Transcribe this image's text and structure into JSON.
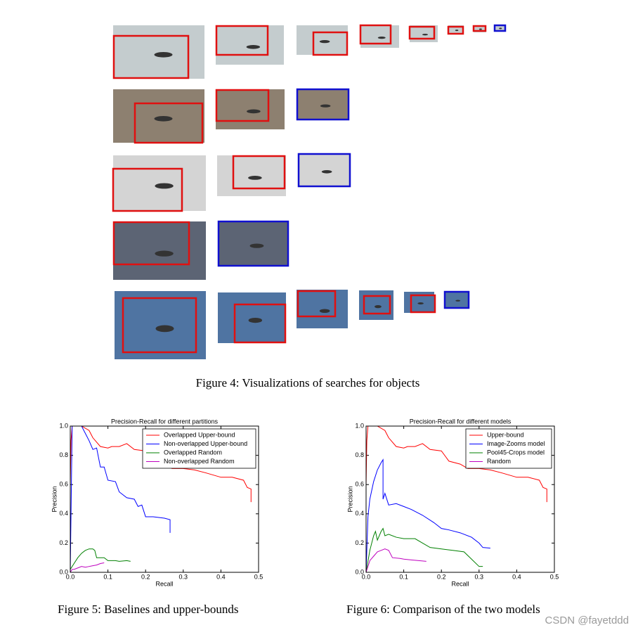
{
  "figure4": {
    "caption": "Figure 4: Visualizations of searches for objects"
  },
  "chart_data": [
    {
      "type": "line",
      "title": "Precision-Recall for different partitions",
      "x_label": "Recall",
      "y_label": "Precision",
      "xlim": [
        0,
        0.5
      ],
      "ylim": [
        0,
        1
      ],
      "xticks": [
        {
          "value": 0,
          "label": "0.0"
        },
        0.1,
        0.2,
        0.3,
        0.4,
        0.5
      ],
      "yticks": [
        {
          "value": 0,
          "label": "0.0"
        },
        0.2,
        0.4,
        0.6,
        0.8,
        {
          "value": 1,
          "label": "1.0"
        }
      ],
      "legend": "upper right",
      "series": [
        {
          "name": "Overlapped Upper-bound",
          "color": "#ff0000",
          "x": [
            0.0,
            0.002,
            0.005,
            0.03,
            0.05,
            0.06,
            0.08,
            0.1,
            0.11,
            0.13,
            0.15,
            0.17,
            0.2,
            0.22,
            0.25,
            0.27,
            0.3,
            0.33,
            0.36,
            0.4,
            0.43,
            0.46,
            0.47,
            0.48,
            0.48
          ],
          "values": [
            0.6,
            0.9,
            1.0,
            1.0,
            0.97,
            0.92,
            0.86,
            0.85,
            0.86,
            0.86,
            0.88,
            0.84,
            0.83,
            0.76,
            0.74,
            0.71,
            0.71,
            0.7,
            0.68,
            0.65,
            0.65,
            0.63,
            0.58,
            0.57,
            0.48
          ]
        },
        {
          "name": "Non-overlapped Upper-bound",
          "color": "#0000ff",
          "x": [
            0.0,
            0.003,
            0.005,
            0.01,
            0.02,
            0.03,
            0.04,
            0.05,
            0.06,
            0.07,
            0.08,
            0.09,
            0.1,
            0.12,
            0.13,
            0.14,
            0.15,
            0.17,
            0.18,
            0.19,
            0.2,
            0.22,
            0.25,
            0.265,
            0.265
          ],
          "values": [
            0.0,
            0.6,
            1.0,
            1.0,
            1.0,
            1.0,
            0.95,
            0.9,
            0.84,
            0.85,
            0.72,
            0.72,
            0.63,
            0.62,
            0.55,
            0.53,
            0.51,
            0.5,
            0.45,
            0.46,
            0.38,
            0.38,
            0.37,
            0.36,
            0.27
          ]
        },
        {
          "name": "Overlapped Random",
          "color": "#008000",
          "x": [
            0.0,
            0.01,
            0.02,
            0.03,
            0.04,
            0.05,
            0.06,
            0.065,
            0.07,
            0.09,
            0.1,
            0.12,
            0.13,
            0.15,
            0.16
          ],
          "values": [
            0.02,
            0.06,
            0.1,
            0.13,
            0.15,
            0.16,
            0.16,
            0.15,
            0.1,
            0.1,
            0.08,
            0.08,
            0.075,
            0.08,
            0.075
          ]
        },
        {
          "name": "Non-overlapped Random",
          "color": "#bf00bf",
          "x": [
            0.0,
            0.005,
            0.01,
            0.02,
            0.03,
            0.04,
            0.05,
            0.06,
            0.07,
            0.08,
            0.09
          ],
          "values": [
            0.0,
            0.02,
            0.02,
            0.03,
            0.04,
            0.035,
            0.04,
            0.045,
            0.05,
            0.06,
            0.065
          ]
        }
      ]
    },
    {
      "type": "line",
      "title": "Precision-Recall for different models",
      "x_label": "Recall",
      "y_label": "Precision",
      "xlim": [
        0,
        0.5
      ],
      "ylim": [
        0,
        1
      ],
      "xticks": [
        {
          "value": 0,
          "label": "0.0"
        },
        0.1,
        0.2,
        0.3,
        0.4,
        0.5
      ],
      "yticks": [
        {
          "value": 0,
          "label": "0.0"
        },
        0.2,
        0.4,
        0.6,
        0.8,
        {
          "value": 1,
          "label": "1.0"
        }
      ],
      "legend": "upper right",
      "series": [
        {
          "name": "Upper-bound",
          "color": "#ff0000",
          "x": [
            0.0,
            0.002,
            0.005,
            0.03,
            0.05,
            0.06,
            0.08,
            0.1,
            0.11,
            0.13,
            0.15,
            0.17,
            0.2,
            0.22,
            0.25,
            0.27,
            0.3,
            0.33,
            0.36,
            0.4,
            0.43,
            0.46,
            0.47,
            0.48,
            0.48
          ],
          "values": [
            0.6,
            0.9,
            1.0,
            1.0,
            0.97,
            0.92,
            0.86,
            0.85,
            0.86,
            0.86,
            0.88,
            0.84,
            0.83,
            0.76,
            0.74,
            0.71,
            0.71,
            0.7,
            0.68,
            0.65,
            0.65,
            0.63,
            0.58,
            0.57,
            0.48
          ]
        },
        {
          "name": "Image-Zooms model",
          "color": "#0000ff",
          "x": [
            0.0,
            0.005,
            0.01,
            0.02,
            0.03,
            0.04,
            0.045,
            0.045,
            0.05,
            0.06,
            0.08,
            0.1,
            0.12,
            0.15,
            0.18,
            0.2,
            0.22,
            0.25,
            0.28,
            0.3,
            0.31,
            0.33
          ],
          "values": [
            0.0,
            0.38,
            0.5,
            0.62,
            0.7,
            0.75,
            0.77,
            0.5,
            0.54,
            0.46,
            0.47,
            0.45,
            0.43,
            0.39,
            0.34,
            0.3,
            0.29,
            0.27,
            0.24,
            0.2,
            0.17,
            0.165
          ]
        },
        {
          "name": "Pool45-Crops model",
          "color": "#008000",
          "x": [
            0.0,
            0.01,
            0.02,
            0.025,
            0.03,
            0.04,
            0.045,
            0.05,
            0.06,
            0.08,
            0.1,
            0.13,
            0.15,
            0.17,
            0.2,
            0.23,
            0.26,
            0.28,
            0.3,
            0.31
          ],
          "values": [
            0.0,
            0.15,
            0.25,
            0.28,
            0.22,
            0.28,
            0.3,
            0.25,
            0.26,
            0.24,
            0.23,
            0.23,
            0.2,
            0.17,
            0.16,
            0.15,
            0.14,
            0.09,
            0.04,
            0.04
          ]
        },
        {
          "name": "Random",
          "color": "#bf00bf",
          "x": [
            0.0,
            0.01,
            0.02,
            0.03,
            0.04,
            0.05,
            0.06,
            0.07,
            0.09,
            0.1,
            0.12,
            0.14,
            0.16
          ],
          "values": [
            0.0,
            0.08,
            0.11,
            0.14,
            0.15,
            0.16,
            0.15,
            0.1,
            0.095,
            0.09,
            0.085,
            0.08,
            0.075
          ]
        }
      ]
    }
  ],
  "figure5": {
    "caption": "Figure 5: Baselines and upper-bounds"
  },
  "figure6": {
    "caption": "Figure 6: Comparison of the two models"
  },
  "watermark": "CSDN @fayetddd"
}
